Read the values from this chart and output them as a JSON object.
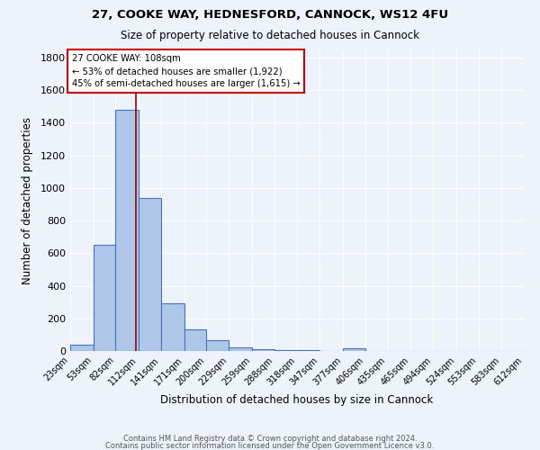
{
  "title_line1": "27, COOKE WAY, HEDNESFORD, CANNOCK, WS12 4FU",
  "title_line2": "Size of property relative to detached houses in Cannock",
  "xlabel": "Distribution of detached houses by size in Cannock",
  "ylabel": "Number of detached properties",
  "bar_edges": [
    23,
    53,
    82,
    112,
    141,
    171,
    200,
    229,
    259,
    288,
    318,
    347,
    377,
    406,
    435,
    465,
    494,
    524,
    553,
    583,
    612
  ],
  "bar_heights": [
    38,
    650,
    1480,
    940,
    290,
    130,
    65,
    22,
    10,
    5,
    3,
    2,
    18,
    0,
    0,
    0,
    0,
    0,
    0,
    0
  ],
  "bar_color": "#aec6e8",
  "bar_edge_color": "#4472c4",
  "background_color": "#eef3fb",
  "grid_color": "#ffffff",
  "vline_x": 108,
  "vline_color": "#990000",
  "annotation_text": "27 COOKE WAY: 108sqm\n← 53% of detached houses are smaller (1,922)\n45% of semi-detached houses are larger (1,615) →",
  "annotation_box_color": "#ffffff",
  "annotation_box_edge": "#cc0000",
  "ylim": [
    0,
    1850
  ],
  "yticks": [
    0,
    200,
    400,
    600,
    800,
    1000,
    1200,
    1400,
    1600,
    1800
  ],
  "tick_labels": [
    "23sqm",
    "53sqm",
    "82sqm",
    "112sqm",
    "141sqm",
    "171sqm",
    "200sqm",
    "229sqm",
    "259sqm",
    "288sqm",
    "318sqm",
    "347sqm",
    "377sqm",
    "406sqm",
    "435sqm",
    "465sqm",
    "494sqm",
    "524sqm",
    "553sqm",
    "583sqm",
    "612sqm"
  ],
  "footer_line1": "Contains HM Land Registry data © Crown copyright and database right 2024.",
  "footer_line2": "Contains public sector information licensed under the Open Government Licence v3.0."
}
